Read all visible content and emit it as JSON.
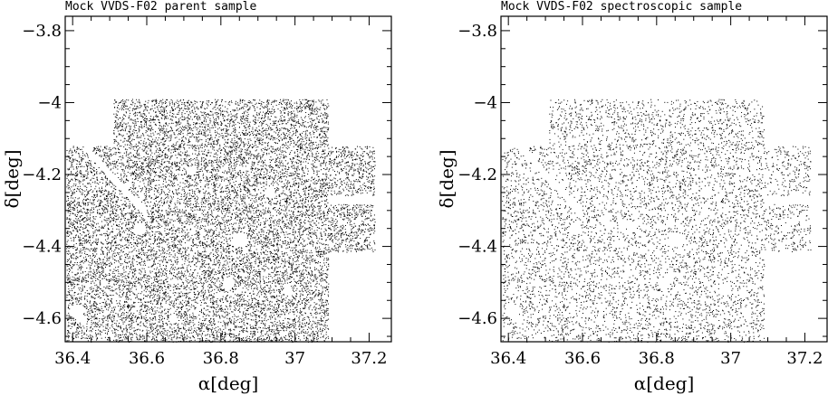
{
  "chart_data": [
    {
      "type": "scatter",
      "title": "Mock VVDS-F02 parent sample",
      "xlabel": "α[deg]",
      "ylabel": "δ[deg]",
      "xlim": [
        36.38,
        37.26
      ],
      "ylim": [
        -4.665,
        -3.76
      ],
      "x_ticks": [
        36.4,
        36.6,
        36.8,
        37,
        37.2
      ],
      "x_tick_labels": [
        "36.4",
        "36.6",
        "36.8",
        "37",
        "37.2"
      ],
      "y_ticks": [
        -3.8,
        -4,
        -4.2,
        -4.4,
        -4.6
      ],
      "y_tick_labels": [
        "−3.8",
        "−4",
        "−4.2",
        "−4.4",
        "−4.6"
      ],
      "density": 1.0,
      "point_color": "#000000"
    },
    {
      "type": "scatter",
      "title": "Mock VVDS-F02 spectroscopic sample",
      "xlabel": "α[deg]",
      "ylabel": "δ[deg]",
      "xlim": [
        36.38,
        37.26
      ],
      "ylim": [
        -4.665,
        -3.76
      ],
      "x_ticks": [
        36.4,
        36.6,
        36.8,
        37,
        37.2
      ],
      "x_tick_labels": [
        "36.4",
        "36.6",
        "36.8",
        "37",
        "37.2"
      ],
      "y_ticks": [
        -3.8,
        -4,
        -4.2,
        -4.4,
        -4.6
      ],
      "y_tick_labels": [
        "−3.8",
        "−4",
        "−4.2",
        "−4.4",
        "−4.6"
      ],
      "density": 0.45,
      "point_color": "#000000"
    }
  ]
}
